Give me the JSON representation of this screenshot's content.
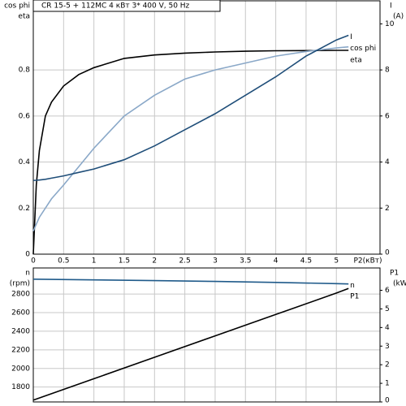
{
  "chart_data": [
    {
      "type": "line",
      "title": "CR 15-5 + 112MC   4 кВт   3* 400 V, 50 Hz",
      "y_axis_labels": [
        "cos phi",
        "eta"
      ],
      "y2_axis_labels": [
        "I",
        "(A)"
      ],
      "xlabel": "P2(кВт)",
      "x": [
        0,
        0.05,
        0.1,
        0.2,
        0.3,
        0.5,
        0.75,
        1,
        1.5,
        2,
        2.5,
        3,
        3.5,
        4,
        4.5,
        5,
        5.2
      ],
      "series": [
        {
          "name": "eta",
          "color": "#000000",
          "values": [
            0,
            0.3,
            0.45,
            0.6,
            0.66,
            0.73,
            0.78,
            0.81,
            0.85,
            0.865,
            0.873,
            0.878,
            0.881,
            0.883,
            0.884,
            0.885,
            0.885
          ]
        },
        {
          "name": "cos phi",
          "color": "#8aa8c8",
          "values": [
            0.1,
            0.13,
            0.16,
            0.2,
            0.24,
            0.3,
            0.38,
            0.46,
            0.6,
            0.69,
            0.76,
            0.8,
            0.83,
            0.86,
            0.88,
            0.895,
            0.9
          ]
        },
        {
          "name": "I",
          "color": "#1f4e79",
          "axis": "y2",
          "values": [
            3.2,
            3.21,
            3.22,
            3.25,
            3.3,
            3.4,
            3.55,
            3.7,
            4.1,
            4.7,
            5.4,
            6.1,
            6.9,
            7.7,
            8.6,
            9.3,
            9.5
          ]
        }
      ],
      "xlim": [
        0,
        5.72
      ],
      "xticks": [
        0,
        0.5,
        1,
        1.5,
        2,
        2.5,
        3,
        3.5,
        4,
        4.5,
        5
      ],
      "ylim": [
        0,
        1.1
      ],
      "yticks": [
        0,
        0.2,
        0.4,
        0.6,
        0.8
      ],
      "y2lim": [
        0,
        11
      ],
      "y2ticks": [
        0,
        2,
        4,
        6,
        8,
        10
      ],
      "grid": true
    },
    {
      "type": "line",
      "y_axis_labels": [
        "n",
        "(rpm)"
      ],
      "y2_axis_labels": [
        "P1",
        "(kW)"
      ],
      "x": [
        0,
        1,
        2,
        3,
        4,
        5,
        5.2
      ],
      "series": [
        {
          "name": "n",
          "color": "#1f5a8a",
          "values": [
            2960,
            2952,
            2944,
            2935,
            2925,
            2912,
            2908
          ]
        },
        {
          "name": "P1",
          "color": "#000000",
          "axis": "y2",
          "values": [
            0.1,
            1.25,
            2.4,
            3.55,
            4.7,
            5.85,
            6.1
          ]
        }
      ],
      "xlim": [
        0,
        5.72
      ],
      "xticks": [
        0,
        0.5,
        1,
        1.5,
        2,
        2.5,
        3,
        3.5,
        4,
        4.5,
        5
      ],
      "ylim": [
        1640,
        3080
      ],
      "yticks": [
        1800,
        2000,
        2200,
        2400,
        2600,
        2800
      ],
      "y2lim": [
        0,
        7.2
      ],
      "y2ticks": [
        0,
        1,
        2,
        3,
        4,
        5,
        6
      ],
      "grid": true
    }
  ]
}
